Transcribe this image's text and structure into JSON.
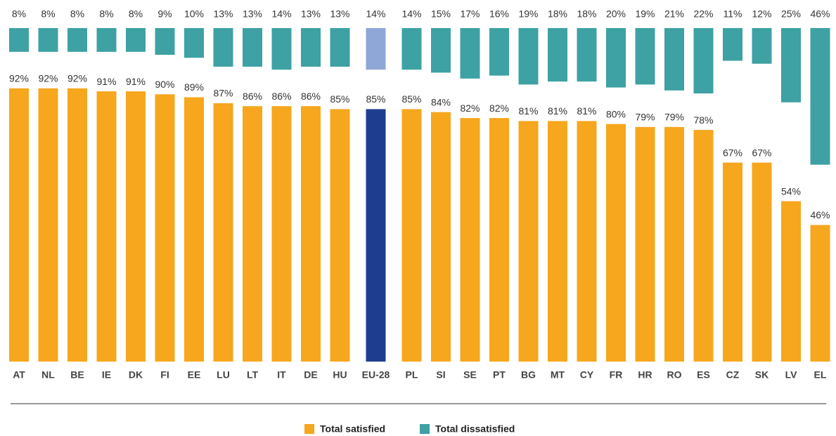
{
  "chart_data": {
    "type": "bar",
    "categories": [
      "AT",
      "NL",
      "BE",
      "IE",
      "DK",
      "FI",
      "EE",
      "LU",
      "LT",
      "IT",
      "DE",
      "HU",
      "EU-28",
      "PL",
      "SI",
      "SE",
      "PT",
      "BG",
      "MT",
      "CY",
      "FR",
      "HR",
      "RO",
      "ES",
      "CZ",
      "SK",
      "LV",
      "EL"
    ],
    "highlight": "EU-28",
    "series": [
      {
        "name": "Total satisfied",
        "color": "#f6a71d",
        "highlight_color": "#1f3d8f",
        "values": [
          92,
          92,
          92,
          91,
          91,
          90,
          89,
          87,
          86,
          86,
          86,
          85,
          85,
          85,
          84,
          82,
          82,
          81,
          81,
          81,
          80,
          79,
          79,
          78,
          67,
          67,
          54,
          46
        ],
        "value_labels": [
          "92%",
          "92%",
          "92%",
          "91%",
          "91%",
          "90%",
          "89%",
          "87%",
          "86%",
          "86%",
          "86%",
          "85%",
          "85%",
          "85%",
          "84%",
          "82%",
          "82%",
          "81%",
          "81%",
          "81%",
          "80%",
          "79%",
          "79%",
          "78%",
          "67%",
          "67%",
          "54%",
          "46%"
        ]
      },
      {
        "name": "Total dissatisfied",
        "color": "#3ea1a3",
        "highlight_color": "#8fa7d7",
        "values": [
          8,
          8,
          8,
          8,
          8,
          9,
          10,
          13,
          13,
          14,
          13,
          13,
          14,
          14,
          15,
          17,
          16,
          19,
          18,
          18,
          20,
          19,
          21,
          22,
          11,
          12,
          25,
          46
        ],
        "value_labels": [
          "8%",
          "8%",
          "8%",
          "8%",
          "8%",
          "9%",
          "10%",
          "13%",
          "13%",
          "14%",
          "13%",
          "13%",
          "14%",
          "14%",
          "15%",
          "17%",
          "16%",
          "19%",
          "18%",
          "18%",
          "20%",
          "19%",
          "21%",
          "22%",
          "11%",
          "12%",
          "25%",
          "46%"
        ]
      }
    ]
  }
}
